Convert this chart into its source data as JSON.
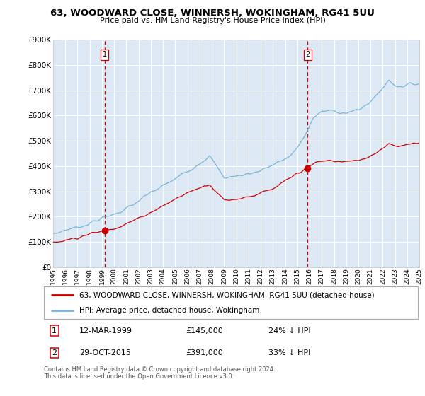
{
  "title_line1": "63, WOODWARD CLOSE, WINNERSH, WOKINGHAM, RG41 5UU",
  "title_line2": "Price paid vs. HM Land Registry's House Price Index (HPI)",
  "legend_label1": "63, WOODWARD CLOSE, WINNERSH, WOKINGHAM, RG41 5UU (detached house)",
  "legend_label2": "HPI: Average price, detached house, Wokingham",
  "annotation1_date": "12-MAR-1999",
  "annotation1_price": "£145,000",
  "annotation1_hpi": "24% ↓ HPI",
  "annotation2_date": "29-OCT-2015",
  "annotation2_price": "£391,000",
  "annotation2_hpi": "33% ↓ HPI",
  "footnote": "Contains HM Land Registry data © Crown copyright and database right 2024.\nThis data is licensed under the Open Government Licence v3.0.",
  "sale1_year": 1999.21,
  "sale1_price": 145000,
  "sale2_year": 2015.83,
  "sale2_price": 391000,
  "ylim_max": 900000,
  "background_color": "#dce9f5",
  "red_line_color": "#cc0000",
  "blue_line_color": "#7ab4d8",
  "grid_color": "#ffffff",
  "dashed_line_color": "#cc0000"
}
